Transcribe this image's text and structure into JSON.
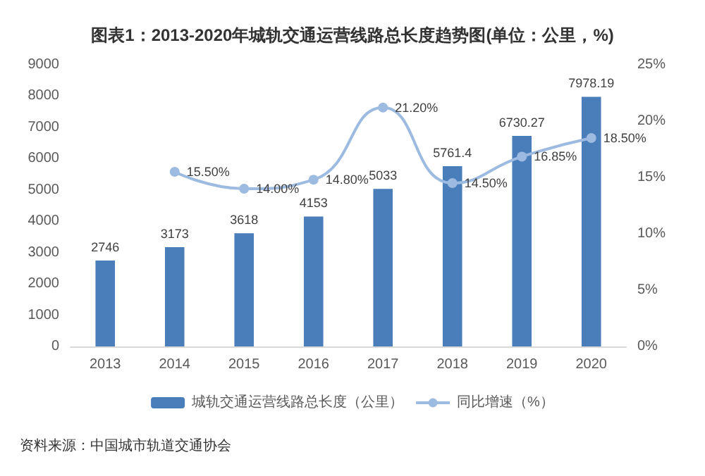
{
  "chart_data": {
    "type": "bar",
    "title": "图表1：2013-2020年城轨交通运营线路总长度趋势图(单位：公里，%)",
    "categories": [
      "2013",
      "2014",
      "2015",
      "2016",
      "2017",
      "2018",
      "2019",
      "2020"
    ],
    "series": [
      {
        "name": "城轨交通运营线路总长度（公里）",
        "color": "#4a7ebb",
        "values": [
          2746,
          3173,
          3618,
          4153,
          5033,
          5761.4,
          6730.27,
          7978.19
        ],
        "value_labels": [
          "2746",
          "3173",
          "3618",
          "4153",
          "5033",
          "5761.4",
          "6730.27",
          "7978.19"
        ]
      },
      {
        "name": "同比增速（%）",
        "type": "line",
        "axis": "y2",
        "color": "#9dbbe0",
        "values": [
          null,
          15.5,
          14.0,
          14.8,
          21.2,
          14.5,
          16.85,
          18.5
        ],
        "value_labels": [
          null,
          "15.50%",
          "14.00%",
          "14.80%",
          "21.20%",
          "14.50%",
          "16.85%",
          "18.50%"
        ]
      }
    ],
    "ylim": [
      0,
      9000
    ],
    "yticks": [
      0,
      1000,
      2000,
      3000,
      4000,
      5000,
      6000,
      7000,
      8000,
      9000
    ],
    "y2lim": [
      0,
      25
    ],
    "y2ticks": [
      {
        "value": 0,
        "label": "0%"
      },
      {
        "value": 5,
        "label": "5%"
      },
      {
        "value": 10,
        "label": "10%"
      },
      {
        "value": 15,
        "label": "15%"
      },
      {
        "value": 20,
        "label": "20%"
      },
      {
        "value": 25,
        "label": "25%"
      }
    ],
    "marker": "circle",
    "grid": false,
    "legend": "bottom",
    "annotations": [
      "资料来源：中国城市轨道交通协会"
    ]
  }
}
